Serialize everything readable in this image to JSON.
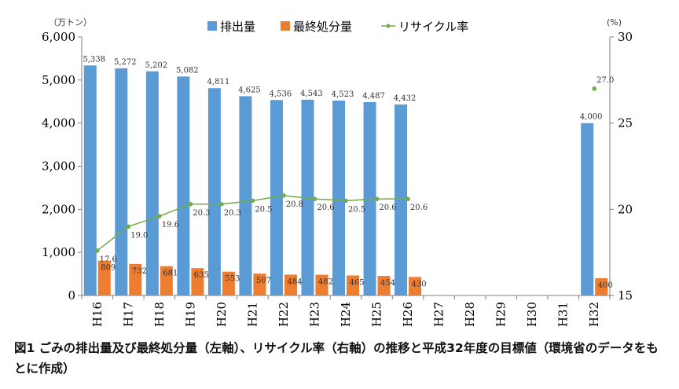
{
  "caption": "図1 ごみの排出量及び最終処分量（左軸）、リサイクル率（右軸）の推移と平成32年度の目標値（環境省のデータをもとに作成）",
  "chart_data": {
    "type": "bar",
    "categories": [
      "H16",
      "H17",
      "H18",
      "H19",
      "H20",
      "H21",
      "H22",
      "H23",
      "H24",
      "H25",
      "H26",
      "H27",
      "H28",
      "H29",
      "H30",
      "H31",
      "H32"
    ],
    "left_unit": "（万トン）",
    "right_unit": "(%)",
    "left_ticks": [
      "0",
      "1,000",
      "2,000",
      "3,000",
      "4,000",
      "5,000",
      "6,000"
    ],
    "right_ticks": [
      "15",
      "20",
      "25",
      "30"
    ],
    "ylim_left": [
      0,
      6000
    ],
    "ylim_right": [
      15,
      30
    ],
    "grid": false,
    "legend_position": "top",
    "series": [
      {
        "name": "排出量",
        "kind": "bar",
        "axis": "left",
        "color": "#5b9bd5",
        "values": [
          5338,
          5272,
          5202,
          5082,
          4811,
          4625,
          4536,
          4543,
          4523,
          4487,
          4432,
          null,
          null,
          null,
          null,
          null,
          4000
        ],
        "labels": [
          "5,338",
          "5,272",
          "5,202",
          "5,082",
          "4,811",
          "4,625",
          "4,536",
          "4,543",
          "4,523",
          "4,487",
          "4,432",
          null,
          null,
          null,
          null,
          null,
          "4,000"
        ]
      },
      {
        "name": "最終処分量",
        "kind": "bar",
        "axis": "left",
        "color": "#ed7d31",
        "values": [
          809,
          732,
          681,
          635,
          553,
          507,
          484,
          482,
          465,
          454,
          430,
          null,
          null,
          null,
          null,
          null,
          400
        ],
        "labels": [
          "809",
          "732",
          "681",
          "635",
          "553",
          "507",
          "484",
          "482",
          "465",
          "454",
          "430",
          null,
          null,
          null,
          null,
          null,
          "400"
        ]
      },
      {
        "name": "リサイクル率",
        "kind": "line",
        "axis": "right",
        "color": "#70ad47",
        "values": [
          17.6,
          19.0,
          19.6,
          20.3,
          20.3,
          20.5,
          20.8,
          20.6,
          20.5,
          20.6,
          20.6,
          null,
          null,
          null,
          null,
          null,
          27.0
        ],
        "labels": [
          "17.6",
          "19.0",
          "19.6",
          "20.3",
          "20.3",
          "20.5",
          "20.8",
          "20.6",
          "20.5",
          "20.6",
          "20.6",
          null,
          null,
          null,
          null,
          null,
          "27.0"
        ]
      }
    ]
  }
}
